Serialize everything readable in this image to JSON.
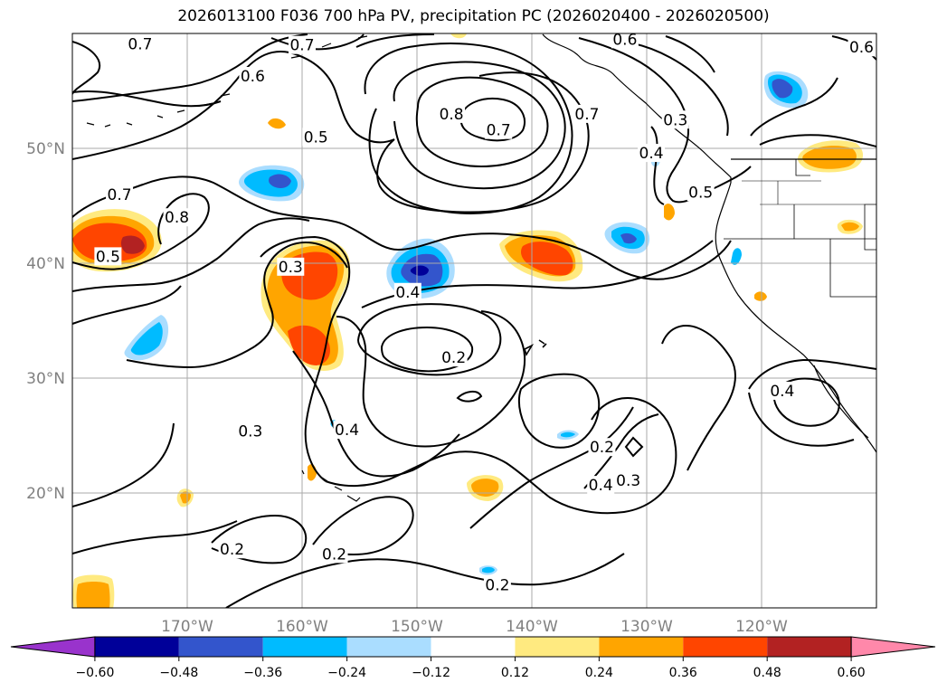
{
  "title": "2026013100 F036 700 hPa PV, precipitation PC (2026020400 - 2026020500)",
  "map": {
    "lon_range": [
      -180,
      -110
    ],
    "lat_range": [
      10,
      60
    ],
    "lon_ticks": [
      {
        "value": -170,
        "label": "170°W"
      },
      {
        "value": -160,
        "label": "160°W"
      },
      {
        "value": -150,
        "label": "150°W"
      },
      {
        "value": -140,
        "label": "140°W"
      },
      {
        "value": -130,
        "label": "130°W"
      },
      {
        "value": -120,
        "label": "120°W"
      }
    ],
    "lat_ticks": [
      {
        "value": 20,
        "label": "20°N"
      },
      {
        "value": 30,
        "label": "30°N"
      },
      {
        "value": 40,
        "label": "40°N"
      },
      {
        "value": 50,
        "label": "50°N"
      }
    ],
    "contour_labels": [
      {
        "text": "0.7",
        "lon": -174.1,
        "lat": 59.1
      },
      {
        "text": "0.7",
        "lon": -160.0,
        "lat": 59.0
      },
      {
        "text": "0.6",
        "lon": -164.3,
        "lat": 56.3
      },
      {
        "text": "0.6",
        "lon": -131.9,
        "lat": 59.5
      },
      {
        "text": "0.6",
        "lon": -111.3,
        "lat": 58.8
      },
      {
        "text": "0.5",
        "lon": -158.8,
        "lat": 51.0
      },
      {
        "text": "0.8",
        "lon": -147.0,
        "lat": 53.0
      },
      {
        "text": "0.7",
        "lon": -142.9,
        "lat": 51.6
      },
      {
        "text": "0.7",
        "lon": -135.2,
        "lat": 53.0
      },
      {
        "text": "0.3",
        "lon": -127.5,
        "lat": 52.5
      },
      {
        "text": "0.4",
        "lon": -129.6,
        "lat": 49.6
      },
      {
        "text": "0.5",
        "lon": -125.3,
        "lat": 46.2
      },
      {
        "text": "0.7",
        "lon": -175.9,
        "lat": 46.0
      },
      {
        "text": "0.8",
        "lon": -170.9,
        "lat": 44.0
      },
      {
        "text": "0.5",
        "lon": -176.9,
        "lat": 40.6
      },
      {
        "text": "0.3",
        "lon": -161.0,
        "lat": 39.7
      },
      {
        "text": "0.4",
        "lon": -150.8,
        "lat": 37.5
      },
      {
        "text": "0.2",
        "lon": -146.8,
        "lat": 31.8
      },
      {
        "text": "0.4",
        "lon": -118.2,
        "lat": 28.9
      },
      {
        "text": "0.3",
        "lon": -164.5,
        "lat": 25.4
      },
      {
        "text": "0.4",
        "lon": -156.1,
        "lat": 25.5
      },
      {
        "text": "0.2",
        "lon": -133.9,
        "lat": 24.0
      },
      {
        "text": "0.4",
        "lon": -134.0,
        "lat": 20.7
      },
      {
        "text": "0.3",
        "lon": -131.6,
        "lat": 21.1
      },
      {
        "text": "0.2",
        "lon": -166.1,
        "lat": 15.1
      },
      {
        "text": "0.2",
        "lon": -157.2,
        "lat": 14.7
      },
      {
        "text": "0.2",
        "lon": -143.0,
        "lat": 12.0
      }
    ]
  },
  "colorbar": {
    "colors": [
      "#9933cc",
      "#000099",
      "#3355cc",
      "#00bbff",
      "#aaddff",
      "#ffffff",
      "#ffea80",
      "#ffa500",
      "#ff4500",
      "#b22222",
      "#ff88aa"
    ],
    "tick_labels": [
      "−0.60",
      "−0.48",
      "−0.36",
      "−0.24",
      "−0.12",
      "0.12",
      "0.24",
      "0.36",
      "0.48",
      "0.60"
    ],
    "tick_values": [
      -0.6,
      -0.48,
      -0.36,
      -0.24,
      -0.12,
      0.12,
      0.24,
      0.36,
      0.48,
      0.6
    ]
  }
}
